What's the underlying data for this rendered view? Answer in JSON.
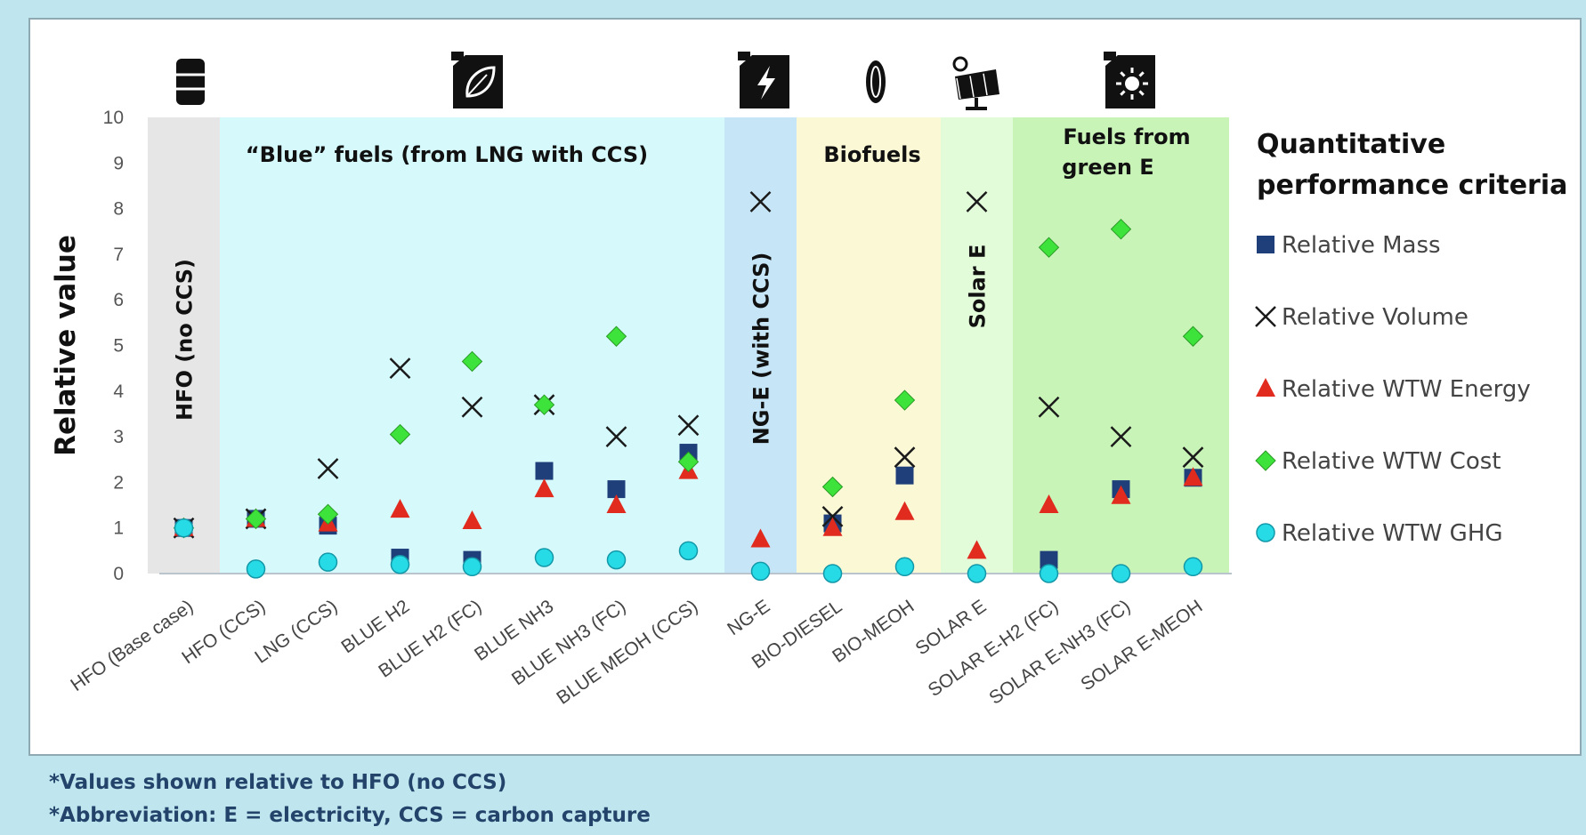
{
  "chart_data": {
    "type": "scatter",
    "ylabel": "Relative value",
    "ylim": [
      0,
      10
    ],
    "yticks": [
      "0",
      "1",
      "2",
      "3",
      "4",
      "5",
      "6",
      "7",
      "8",
      "9",
      "10"
    ],
    "grid": false,
    "legend_position": "right",
    "legend_title": "Quantitative performance criteria",
    "categories": [
      "HFO (Base case)",
      "HFO (CCS)",
      "LNG (CCS)",
      "BLUE H2",
      "BLUE H2 (FC)",
      "BLUE NH3",
      "BLUE NH3 (FC)",
      "BLUE MEOH (CCS)",
      "NG-E",
      "BIO-DIESEL",
      "BIO-MEOH",
      "SOLAR E",
      "SOLAR E-H2 (FC)",
      "SOLAR E-NH3 (FC)",
      "SOLAR E-MEOH"
    ],
    "series": [
      {
        "name": "Relative Mass",
        "marker": "square",
        "color": "#1f3f7a",
        "values": [
          1.0,
          1.2,
          1.05,
          0.35,
          0.3,
          2.25,
          1.85,
          2.65,
          null,
          1.1,
          2.15,
          null,
          0.3,
          1.85,
          2.1
        ]
      },
      {
        "name": "Relative Volume",
        "marker": "x",
        "color": "#1a1a1a",
        "values": [
          1.0,
          1.2,
          2.3,
          4.5,
          3.65,
          3.7,
          3.0,
          3.25,
          8.15,
          1.25,
          2.55,
          8.15,
          3.65,
          3.0,
          2.55
        ]
      },
      {
        "name": "Relative WTW Energy",
        "marker": "triangle",
        "color": "#e02b1e",
        "values": [
          1.0,
          1.2,
          1.1,
          1.4,
          1.15,
          1.85,
          1.5,
          2.25,
          0.75,
          1.0,
          1.35,
          0.5,
          1.5,
          1.7,
          2.1
        ]
      },
      {
        "name": "Relative WTW Cost",
        "marker": "diamond",
        "color": "#3de33a",
        "values": [
          1.0,
          1.2,
          1.3,
          3.05,
          4.65,
          3.7,
          5.2,
          2.45,
          null,
          1.9,
          3.8,
          null,
          7.15,
          7.55,
          5.2
        ]
      },
      {
        "name": "Relative WTW GHG",
        "marker": "circle",
        "color": "#27dbe6",
        "values": [
          1.0,
          0.1,
          0.25,
          0.2,
          0.15,
          0.35,
          0.3,
          0.5,
          0.05,
          0.0,
          0.15,
          0.0,
          0.0,
          0.0,
          0.15
        ]
      }
    ],
    "groups": [
      {
        "label": "HFO (no CCS)",
        "orientation": "vertical",
        "color": "#e6e6e6",
        "icon": "oil-barrel-icon",
        "from": 0,
        "to": 0
      },
      {
        "label": "“Blue” fuels (from LNG with CCS)",
        "orientation": "horizontal",
        "color": "#d6f9fb",
        "icon": "leaf-fuel-can-icon",
        "from": 1,
        "to": 7
      },
      {
        "label": "NG-E (with CCS)",
        "orientation": "vertical",
        "color": "#c6e6f7",
        "icon": "lightning-fuel-can-icon",
        "from": 8,
        "to": 8
      },
      {
        "label": "Biofuels",
        "orientation": "horizontal",
        "color": "#fbf8d6",
        "icon": "seed-icon",
        "from": 9,
        "to": 10
      },
      {
        "label": "Solar E",
        "orientation": "vertical",
        "color": "#e2fbd9",
        "icon": "solar-panel-icon",
        "from": 11,
        "to": 11
      },
      {
        "label": "Fuels from green E",
        "orientation": "horizontal",
        "color": "#c9f4b8",
        "icon": "sun-fuel-can-icon",
        "from": 12,
        "to": 14
      }
    ]
  },
  "footnotes": [
    "*Values shown relative to HFO (no CCS)",
    "*Abbreviation: E = electricity, CCS = carbon capture"
  ]
}
